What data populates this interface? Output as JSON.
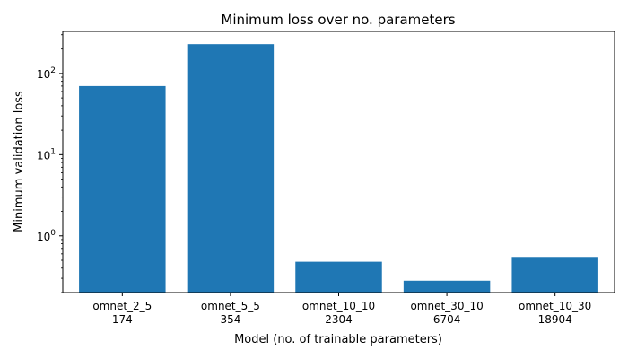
{
  "chart_data": {
    "type": "bar",
    "title": "Minimum loss over no. parameters",
    "xlabel": "Model (no. of trainable parameters)",
    "ylabel": "Minimum validation loss",
    "yscale": "log",
    "ylim": [
      0.2,
      330
    ],
    "categories": [
      {
        "name": "omnet_2_5",
        "params": "174"
      },
      {
        "name": "omnet_5_5",
        "params": "354"
      },
      {
        "name": "omnet_10_10",
        "params": "2304"
      },
      {
        "name": "omnet_30_10",
        "params": "6704"
      },
      {
        "name": "omnet_10_30",
        "params": "18904"
      }
    ],
    "values": [
      70,
      230,
      0.48,
      0.28,
      0.55
    ],
    "bar_color": "#1f77b4",
    "yticks": [
      {
        "base": "10",
        "exp": "0",
        "value": 1
      },
      {
        "base": "10",
        "exp": "1",
        "value": 10
      },
      {
        "base": "10",
        "exp": "2",
        "value": 100
      }
    ],
    "grid": false,
    "legend": "none"
  }
}
